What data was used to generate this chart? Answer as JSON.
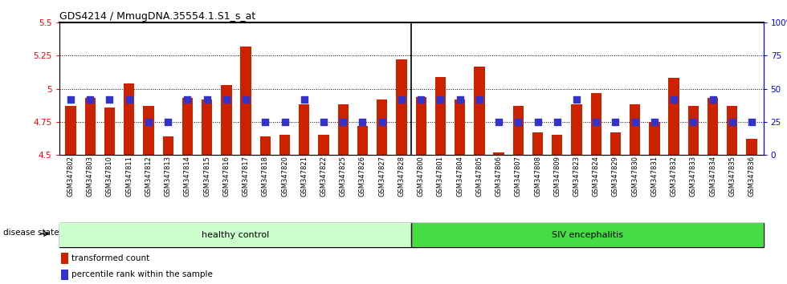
{
  "title": "GDS4214 / MmugDNA.35554.1.S1_s_at",
  "samples": [
    "GSM347802",
    "GSM347803",
    "GSM347810",
    "GSM347811",
    "GSM347812",
    "GSM347813",
    "GSM347814",
    "GSM347815",
    "GSM347816",
    "GSM347817",
    "GSM347818",
    "GSM347820",
    "GSM347821",
    "GSM347822",
    "GSM347825",
    "GSM347826",
    "GSM347827",
    "GSM347828",
    "GSM347800",
    "GSM347801",
    "GSM347804",
    "GSM347805",
    "GSM347806",
    "GSM347807",
    "GSM347808",
    "GSM347809",
    "GSM347823",
    "GSM347824",
    "GSM347829",
    "GSM347830",
    "GSM347831",
    "GSM347832",
    "GSM347833",
    "GSM347834",
    "GSM347835",
    "GSM347836"
  ],
  "bar_values": [
    4.87,
    4.93,
    4.86,
    5.04,
    4.87,
    4.64,
    4.93,
    4.92,
    5.03,
    5.32,
    4.64,
    4.65,
    4.88,
    4.65,
    4.88,
    4.72,
    4.92,
    5.22,
    4.94,
    5.09,
    4.92,
    5.17,
    4.52,
    4.87,
    4.67,
    4.65,
    4.88,
    4.97,
    4.67,
    4.88,
    4.75,
    5.08,
    4.87,
    4.93,
    4.87,
    4.62
  ],
  "percentile_values": [
    42,
    42,
    42,
    42,
    25,
    25,
    42,
    42,
    42,
    42,
    25,
    25,
    42,
    25,
    25,
    25,
    25,
    42,
    42,
    42,
    42,
    42,
    25,
    25,
    25,
    25,
    42,
    25,
    25,
    25,
    25,
    42,
    25,
    42,
    25,
    25
  ],
  "healthy_count": 18,
  "ylim_left": [
    4.5,
    5.5
  ],
  "ylim_right": [
    0,
    100
  ],
  "yticks_left": [
    4.5,
    4.75,
    5.0,
    5.25,
    5.5
  ],
  "yticks_right": [
    0,
    25,
    50,
    75,
    100
  ],
  "ytick_labels_left": [
    "4.5",
    "4.75",
    "5",
    "5.25",
    "5.5"
  ],
  "ytick_labels_right": [
    "0",
    "25",
    "50",
    "75",
    "100%"
  ],
  "bar_color": "#cc2200",
  "dot_color": "#3333cc",
  "healthy_color": "#ccffcc",
  "siv_color": "#44dd44",
  "label_bar": "transformed count",
  "label_dot": "percentile rank within the sample",
  "group1_label": "healthy control",
  "group2_label": "SIV encephalitis",
  "disease_state_label": "disease state"
}
